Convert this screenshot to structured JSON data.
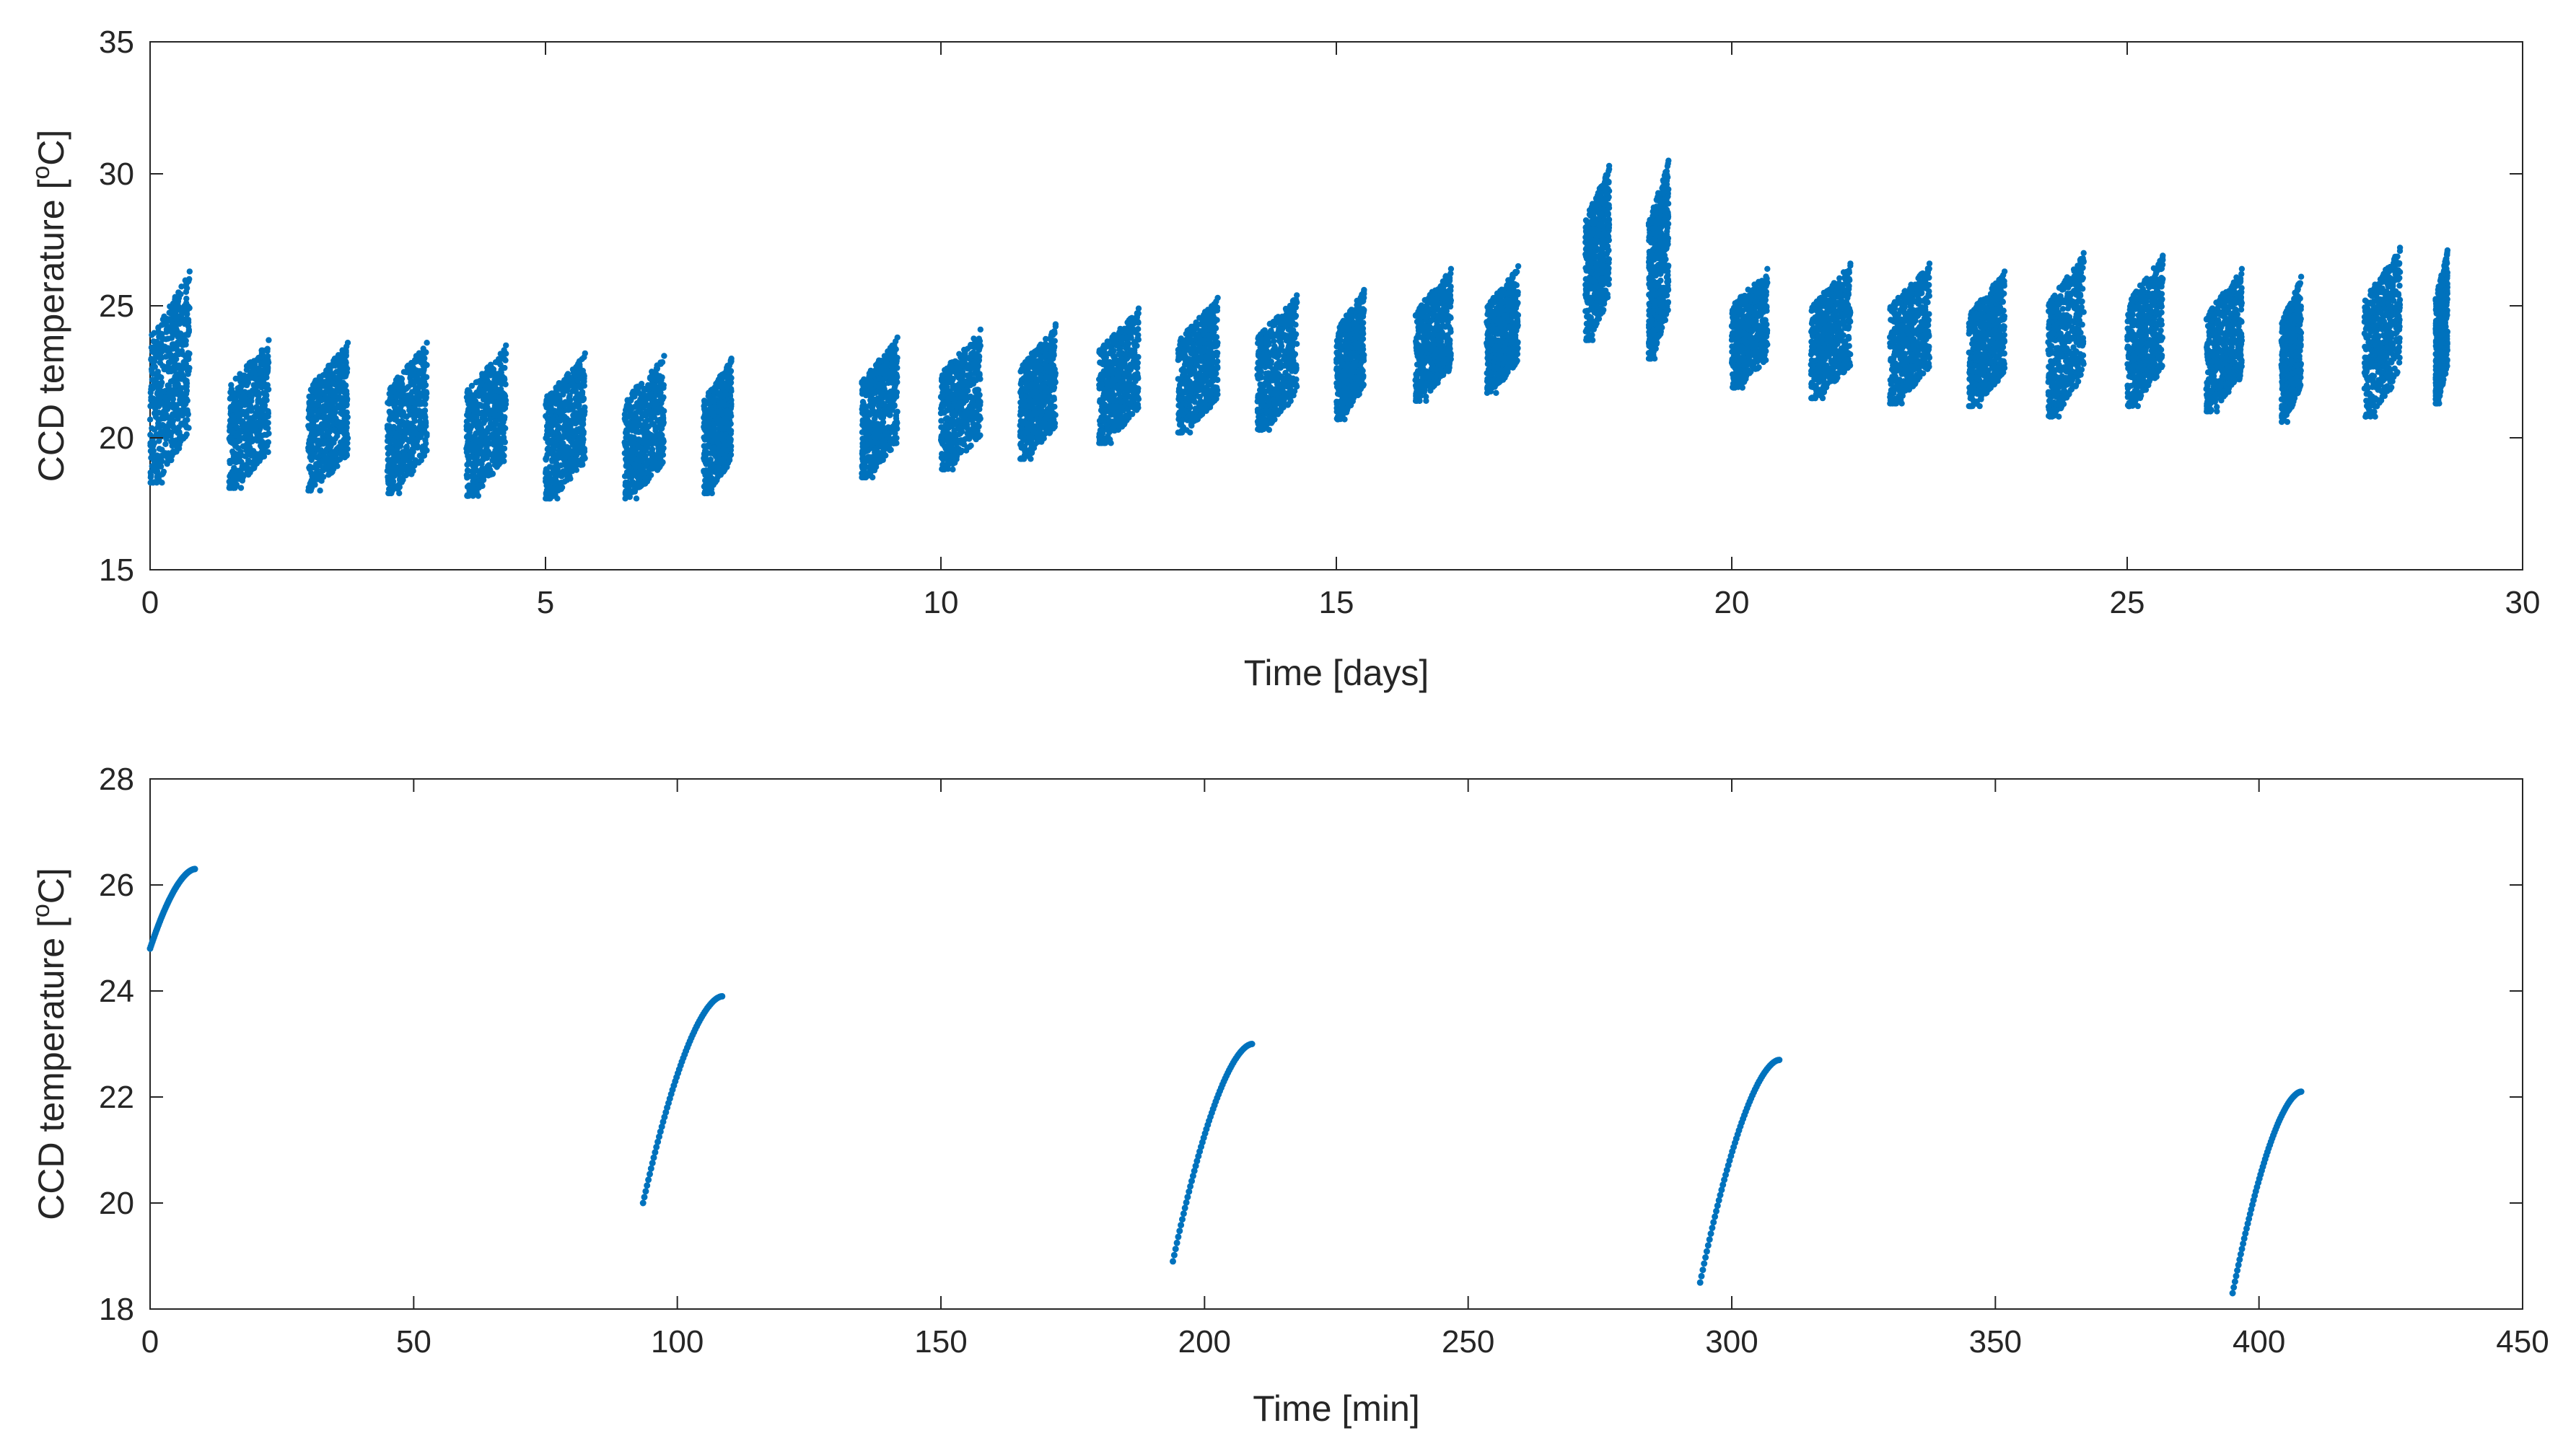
{
  "chart_data": [
    {
      "type": "scatter",
      "xlabel": "Time [days]",
      "ylabel_main": "CCD temperature [",
      "ylabel_sup": "o",
      "ylabel_tail": "C]",
      "xlim": [
        0,
        30
      ],
      "ylim": [
        15,
        35
      ],
      "xticks": [
        0,
        5,
        10,
        15,
        20,
        25,
        30
      ],
      "yticks": [
        15,
        20,
        25,
        30,
        35
      ],
      "grid": false,
      "series": [
        {
          "name": "CCD temperature",
          "color": "#0072BD",
          "segments": [
            {
              "t0": 0.0,
              "t1": 0.5,
              "ymin": 18.3,
              "ymax": 26.3
            },
            {
              "t0": 1.0,
              "t1": 1.5,
              "ymin": 18.1,
              "ymax": 23.7
            },
            {
              "t0": 2.0,
              "t1": 2.5,
              "ymin": 18.0,
              "ymax": 23.6
            },
            {
              "t0": 3.0,
              "t1": 3.5,
              "ymin": 17.9,
              "ymax": 23.6
            },
            {
              "t0": 4.0,
              "t1": 4.5,
              "ymin": 17.8,
              "ymax": 23.5
            },
            {
              "t0": 5.0,
              "t1": 5.5,
              "ymin": 17.7,
              "ymax": 23.2
            },
            {
              "t0": 6.0,
              "t1": 6.5,
              "ymin": 17.7,
              "ymax": 23.1
            },
            {
              "t0": 7.0,
              "t1": 7.35,
              "ymin": 17.9,
              "ymax": 23.0
            },
            {
              "t0": 9.0,
              "t1": 9.45,
              "ymin": 18.5,
              "ymax": 23.8
            },
            {
              "t0": 10.0,
              "t1": 10.5,
              "ymin": 18.8,
              "ymax": 24.1
            },
            {
              "t0": 11.0,
              "t1": 11.45,
              "ymin": 19.2,
              "ymax": 24.3
            },
            {
              "t0": 12.0,
              "t1": 12.5,
              "ymin": 19.8,
              "ymax": 24.9
            },
            {
              "t0": 13.0,
              "t1": 13.5,
              "ymin": 20.2,
              "ymax": 25.3
            },
            {
              "t0": 14.0,
              "t1": 14.5,
              "ymin": 20.3,
              "ymax": 25.4
            },
            {
              "t0": 15.0,
              "t1": 15.35,
              "ymin": 20.7,
              "ymax": 25.6
            },
            {
              "t0": 16.0,
              "t1": 16.45,
              "ymin": 21.4,
              "ymax": 26.4
            },
            {
              "t0": 16.9,
              "t1": 17.3,
              "ymin": 21.7,
              "ymax": 26.5
            },
            {
              "t0": 18.15,
              "t1": 18.45,
              "ymin": 23.7,
              "ymax": 30.3
            },
            {
              "t0": 18.95,
              "t1": 19.2,
              "ymin": 23.0,
              "ymax": 30.5
            },
            {
              "t0": 20.0,
              "t1": 20.45,
              "ymin": 21.9,
              "ymax": 26.4
            },
            {
              "t0": 21.0,
              "t1": 21.5,
              "ymin": 21.5,
              "ymax": 26.6
            },
            {
              "t0": 22.0,
              "t1": 22.5,
              "ymin": 21.3,
              "ymax": 26.6
            },
            {
              "t0": 23.0,
              "t1": 23.45,
              "ymin": 21.2,
              "ymax": 26.3
            },
            {
              "t0": 24.0,
              "t1": 24.45,
              "ymin": 20.8,
              "ymax": 27.0
            },
            {
              "t0": 25.0,
              "t1": 25.45,
              "ymin": 21.2,
              "ymax": 26.9
            },
            {
              "t0": 26.0,
              "t1": 26.45,
              "ymin": 21.0,
              "ymax": 26.4
            },
            {
              "t0": 26.95,
              "t1": 27.2,
              "ymin": 20.6,
              "ymax": 26.1
            },
            {
              "t0": 28.0,
              "t1": 28.45,
              "ymin": 20.8,
              "ymax": 27.2
            },
            {
              "t0": 28.9,
              "t1": 29.05,
              "ymin": 21.3,
              "ymax": 27.1
            }
          ]
        }
      ]
    },
    {
      "type": "scatter",
      "xlabel": "Time [min]",
      "ylabel_main": "CCD temperature [",
      "ylabel_sup": "o",
      "ylabel_tail": "C]",
      "xlim": [
        0,
        450
      ],
      "ylim": [
        18,
        28
      ],
      "xticks": [
        0,
        50,
        100,
        150,
        200,
        250,
        300,
        350,
        400,
        450
      ],
      "yticks": [
        18,
        20,
        22,
        24,
        26,
        28
      ],
      "grid": false,
      "series": [
        {
          "name": "CCD temperature",
          "color": "#0072BD",
          "segments": [
            {
              "t0": 0,
              "t1": 8.5,
              "ystart": 24.8,
              "yend": 26.3
            },
            {
              "t0": 93.5,
              "t1": 108.5,
              "ystart": 20.0,
              "yend": 23.9
            },
            {
              "t0": 194,
              "t1": 209,
              "ystart": 18.9,
              "yend": 23.0
            },
            {
              "t0": 294,
              "t1": 309,
              "ystart": 18.5,
              "yend": 22.7
            },
            {
              "t0": 395,
              "t1": 408,
              "ystart": 18.3,
              "yend": 22.1
            }
          ]
        }
      ]
    }
  ]
}
